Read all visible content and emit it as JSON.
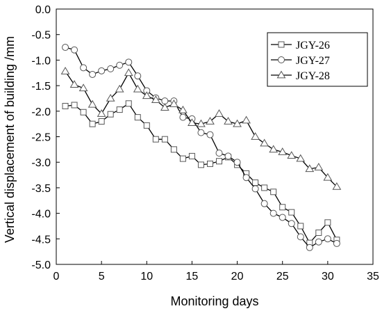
{
  "chart_data": {
    "type": "line",
    "title": "",
    "xlabel": "Monitoring days",
    "ylabel": "Vertical displacement of building /mm",
    "xlim": [
      0,
      35
    ],
    "ylim": [
      -5.0,
      0.0
    ],
    "xticks": [
      0,
      5,
      10,
      15,
      20,
      25,
      30,
      35
    ],
    "yticks": [
      0.0,
      -0.5,
      -1.0,
      -1.5,
      -2.0,
      -2.5,
      -3.0,
      -3.5,
      -4.0,
      -4.5,
      -5.0
    ],
    "xtick_labels": [
      "0",
      "5",
      "10",
      "15",
      "20",
      "25",
      "30",
      "35"
    ],
    "ytick_labels": [
      "0.0",
      "-0.5",
      "-1.0",
      "-1.5",
      "-2.0",
      "-2.5",
      "-3.0",
      "-3.5",
      "-4.0",
      "-4.5",
      "-5.0"
    ],
    "grid": false,
    "legend_position": "top-right",
    "series": [
      {
        "name": "JGY-26",
        "marker": "square",
        "x": [
          1,
          2,
          3,
          4,
          5,
          6,
          7,
          8,
          9,
          10,
          11,
          12,
          13,
          14,
          15,
          16,
          17,
          18,
          19,
          20,
          21,
          22,
          23,
          24,
          25,
          26,
          27,
          28,
          29,
          30,
          31
        ],
        "y": [
          -1.9,
          -1.88,
          -2.02,
          -2.25,
          -2.2,
          -2.06,
          -1.97,
          -1.85,
          -2.12,
          -2.28,
          -2.55,
          -2.55,
          -2.75,
          -2.93,
          -2.88,
          -3.05,
          -3.03,
          -2.98,
          -2.9,
          -3.05,
          -3.22,
          -3.4,
          -3.5,
          -3.58,
          -3.88,
          -3.98,
          -4.25,
          -4.58,
          -4.38,
          -4.18,
          -4.52
        ]
      },
      {
        "name": "JGY-27",
        "marker": "circle",
        "x": [
          1,
          2,
          3,
          4,
          5,
          6,
          7,
          8,
          9,
          10,
          11,
          12,
          13,
          14,
          15,
          16,
          17,
          18,
          19,
          20,
          21,
          22,
          23,
          24,
          25,
          26,
          27,
          28,
          29,
          30,
          31
        ],
        "y": [
          -0.75,
          -0.8,
          -1.15,
          -1.28,
          -1.21,
          -1.17,
          -1.1,
          -1.04,
          -1.31,
          -1.6,
          -1.74,
          -1.8,
          -1.8,
          -2.12,
          -2.15,
          -2.42,
          -2.46,
          -2.82,
          -2.88,
          -3.0,
          -3.3,
          -3.52,
          -3.81,
          -4.0,
          -4.08,
          -4.2,
          -4.46,
          -4.67,
          -4.56,
          -4.5,
          -4.59
        ]
      },
      {
        "name": "JGY-28",
        "marker": "triangle",
        "x": [
          1,
          2,
          3,
          4,
          5,
          6,
          7,
          8,
          9,
          10,
          11,
          12,
          13,
          14,
          15,
          16,
          17,
          18,
          19,
          20,
          21,
          22,
          23,
          24,
          25,
          26,
          27,
          28,
          29,
          30,
          31
        ],
        "y": [
          -1.22,
          -1.48,
          -1.55,
          -1.87,
          -2.05,
          -1.75,
          -1.57,
          -1.25,
          -1.57,
          -1.7,
          -1.78,
          -1.93,
          -1.86,
          -1.98,
          -2.23,
          -2.25,
          -2.2,
          -2.05,
          -2.2,
          -2.25,
          -2.18,
          -2.5,
          -2.63,
          -2.75,
          -2.8,
          -2.87,
          -2.93,
          -3.13,
          -3.1,
          -3.3,
          -3.48
        ]
      }
    ]
  }
}
